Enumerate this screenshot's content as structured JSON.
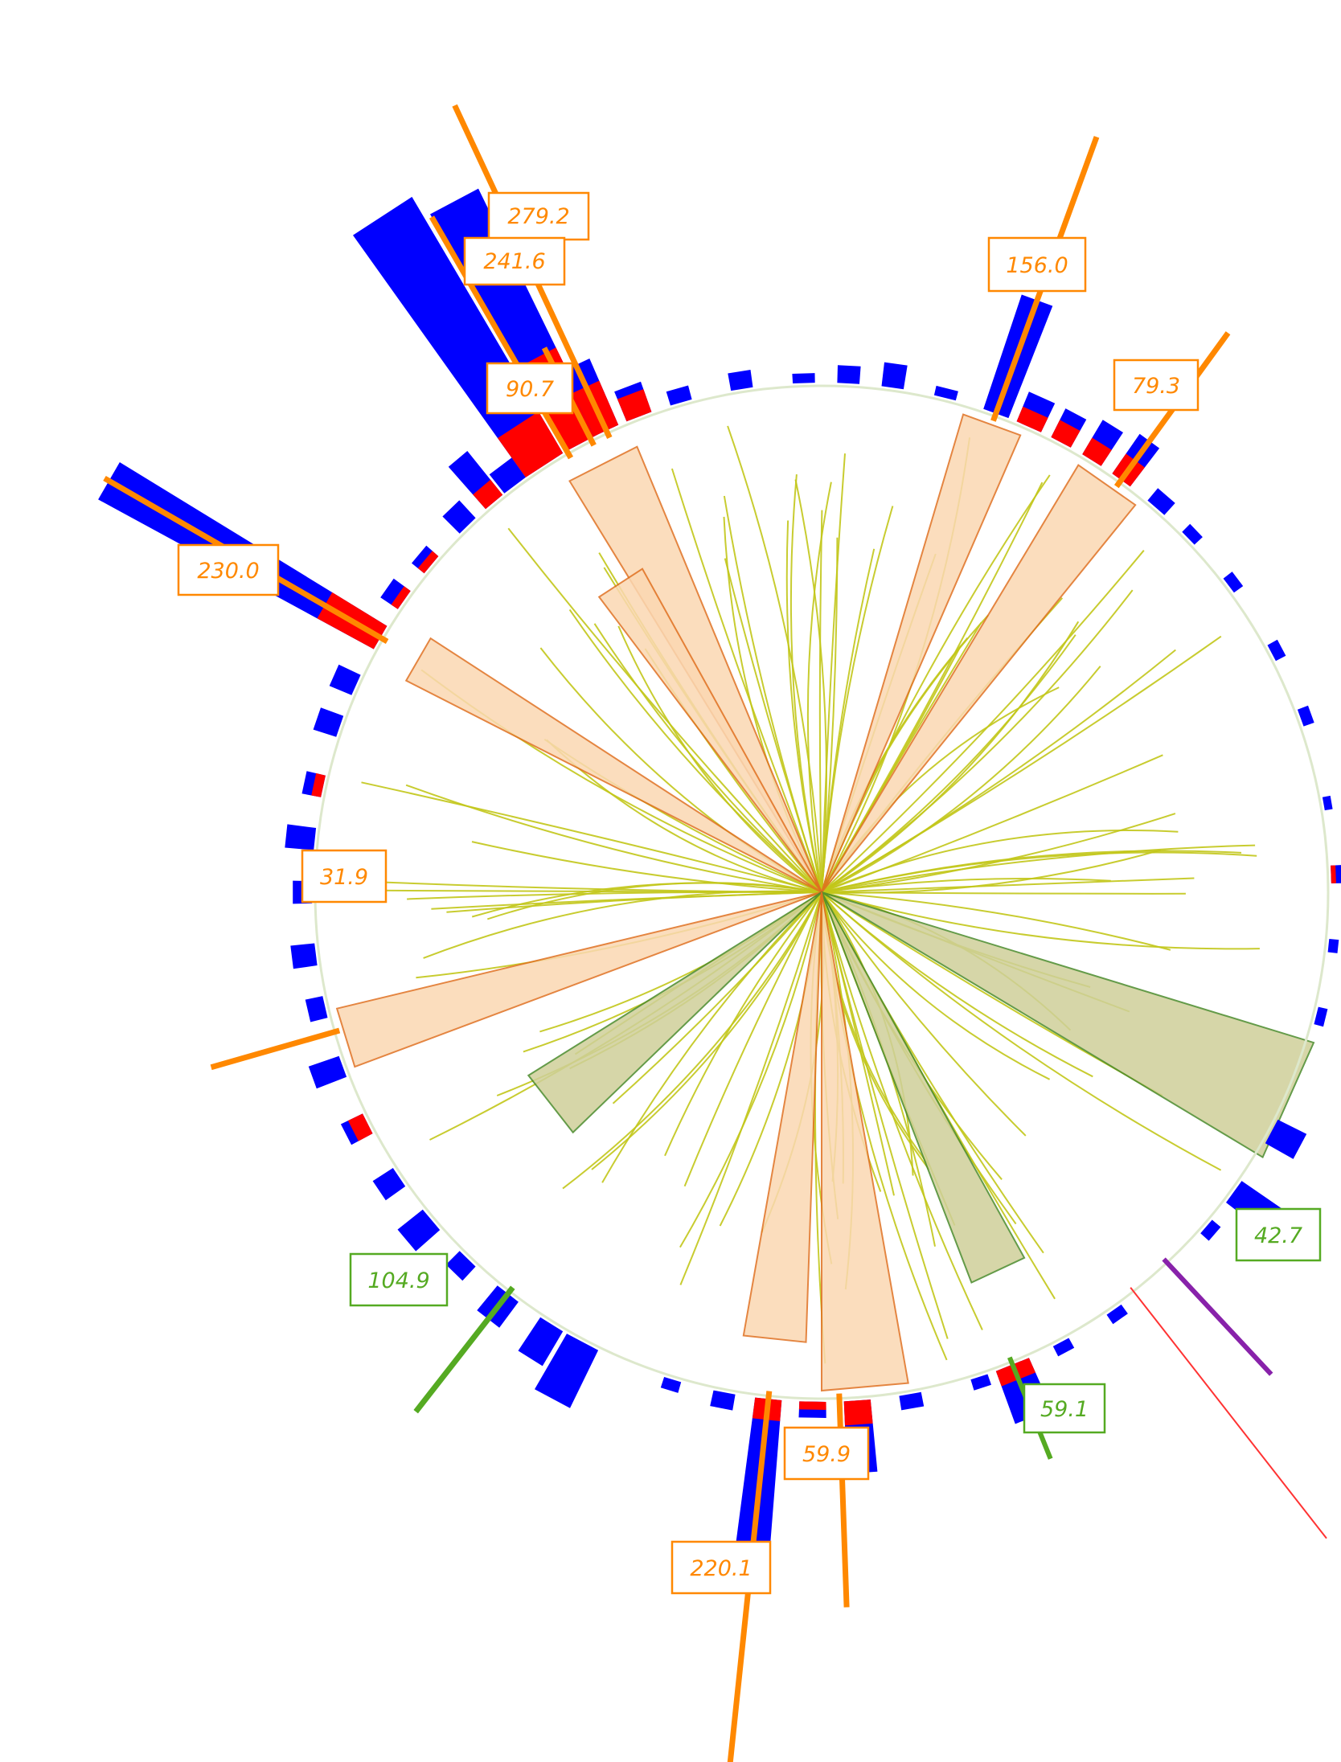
{
  "colors": {
    "outer_bar": "#0000ff",
    "inner_bar": "#ff0000",
    "orange": "#ff8800",
    "green": "#55aa22",
    "purple": "#8822aa",
    "red_line": "#ff3333",
    "ring": "#dde8cc",
    "chord": "#c2c61a",
    "orange_wedge_fill": "#fbd8b2",
    "orange_wedge_stroke": "#e07020",
    "green_wedge_fill": "#cfd09a",
    "green_wedge_stroke": "#4a8a2a"
  },
  "labels": [
    {
      "id": "orange-279",
      "text": "279.2",
      "kind": "orange"
    },
    {
      "id": "orange-241",
      "text": "241.6",
      "kind": "orange"
    },
    {
      "id": "orange-90",
      "text": "90.7",
      "kind": "orange"
    },
    {
      "id": "orange-230",
      "text": "230.0",
      "kind": "orange"
    },
    {
      "id": "orange-156",
      "text": "156.0",
      "kind": "orange"
    },
    {
      "id": "orange-79",
      "text": "79.3",
      "kind": "orange"
    },
    {
      "id": "orange-31",
      "text": "31.9",
      "kind": "orange"
    },
    {
      "id": "green-104",
      "text": "104.9",
      "kind": "green"
    },
    {
      "id": "green-42",
      "text": "42.7",
      "kind": "green"
    },
    {
      "id": "green-59",
      "text": "59.1",
      "kind": "green"
    },
    {
      "id": "orange-59",
      "text": "59.9",
      "kind": "orange"
    },
    {
      "id": "orange-220",
      "text": "220.1",
      "kind": "orange"
    }
  ]
}
